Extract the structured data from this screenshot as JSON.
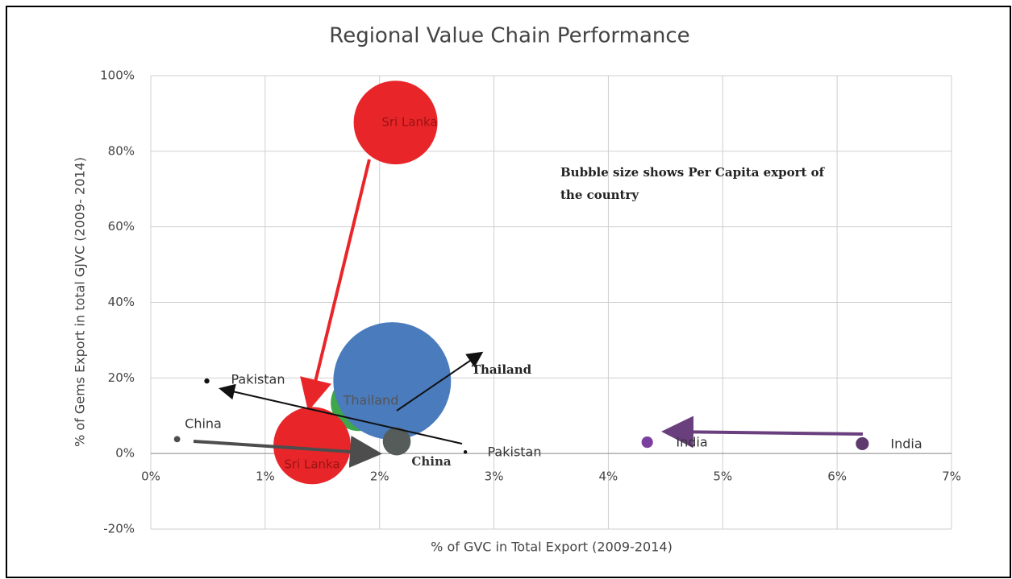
{
  "chart_data": {
    "type": "bubble",
    "title": "Regional Value Chain Performance",
    "x_label": "% of GVC in Total Export (2009-2014)",
    "y_label": "% of Gems Export in total GJVC (2009- 2014)",
    "annotation": "Bubble size shows Per Capita export of the country",
    "xlim": [
      0,
      7
    ],
    "ylim": [
      -20,
      100
    ],
    "xticks": [
      {
        "value": 0,
        "label": "0%"
      },
      {
        "value": 1,
        "label": "1%"
      },
      {
        "value": 2,
        "label": "2%"
      },
      {
        "value": 3,
        "label": "3%"
      },
      {
        "value": 4,
        "label": "4%"
      },
      {
        "value": 5,
        "label": "5%"
      },
      {
        "value": 6,
        "label": "6%"
      },
      {
        "value": 7,
        "label": "7%"
      }
    ],
    "yticks": [
      {
        "value": -20,
        "label": "-20%"
      },
      {
        "value": 0,
        "label": "0%"
      },
      {
        "value": 20,
        "label": "20%"
      },
      {
        "value": 40,
        "label": "40%"
      },
      {
        "value": 60,
        "label": "60%"
      },
      {
        "value": 80,
        "label": "80%"
      },
      {
        "value": 100,
        "label": "100%"
      }
    ],
    "grid": true,
    "series": [
      {
        "name": "Thailand",
        "colors": [
          "#3ea64b",
          "#4a7bbd"
        ],
        "x": [
          1.82,
          2.11
        ],
        "values": [
          13.4,
          19.2
        ],
        "sizes": [
          49,
          213
        ]
      },
      {
        "name": "China",
        "colors": [
          "#4d4d4d",
          "#555c5a"
        ],
        "x": [
          0.23,
          2.15
        ],
        "values": [
          3.8,
          3.2
        ],
        "sizes": [
          0.6,
          12
        ]
      },
      {
        "name": "Sri Lanka",
        "colors": [
          "#e8262a",
          "#e8262a"
        ],
        "x": [
          2.14,
          1.41
        ],
        "values": [
          87.6,
          2.1
        ],
        "sizes": [
          108,
          92
        ]
      },
      {
        "name": "Pakistan",
        "colors": [
          "#111111",
          "#111111"
        ],
        "x": [
          0.49,
          2.75
        ],
        "values": [
          19.2,
          0.4
        ],
        "sizes": [
          0.4,
          0.2
        ]
      },
      {
        "name": "India",
        "colors": [
          "#7b3fa0",
          "#5e3a6e"
        ],
        "x": [
          4.34,
          6.22
        ],
        "values": [
          3.0,
          2.6
        ],
        "sizes": [
          2,
          2.6
        ]
      }
    ]
  }
}
